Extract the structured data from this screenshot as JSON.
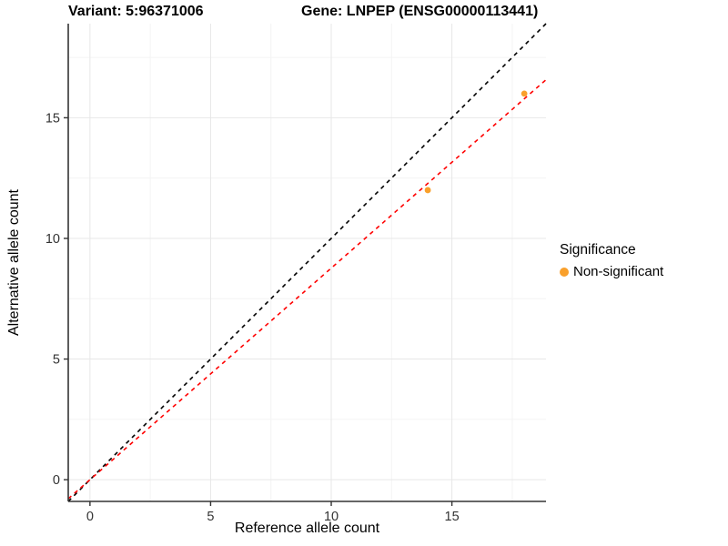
{
  "titles": {
    "variant": "Variant: 5:96371006",
    "gene": "Gene: LNPEP (ENSG00000113441)"
  },
  "chart_data": {
    "type": "scatter",
    "title_left": "Variant: 5:96371006",
    "title_right": "Gene: LNPEP (ENSG00000113441)",
    "xlabel": "Reference allele count",
    "ylabel": "Alternative allele count",
    "xlim": [
      -0.9,
      18.9
    ],
    "ylim": [
      -0.9,
      18.9
    ],
    "x_ticks": [
      0,
      5,
      10,
      15
    ],
    "y_ticks": [
      0,
      5,
      10,
      15
    ],
    "minor_ticks": [
      2.5,
      7.5,
      12.5,
      17.5
    ],
    "grid": true,
    "points": [
      {
        "x": 14,
        "y": 12,
        "series": "Non-significant"
      },
      {
        "x": 18,
        "y": 16,
        "series": "Non-significant"
      }
    ],
    "lines": [
      {
        "name": "identity-line",
        "slope": 1,
        "intercept": 0,
        "color": "#000000",
        "style": "dashed"
      },
      {
        "name": "fitted-line",
        "slope": 0.877,
        "intercept": 0,
        "color": "#FF0000",
        "style": "dashed"
      }
    ],
    "legend": {
      "title": "Significance",
      "position": "right",
      "items": [
        {
          "label": "Non-significant",
          "color": "#F9A02B"
        }
      ]
    },
    "colors": {
      "point": "#F9A02B",
      "grid_major": "#E7E7E7",
      "grid_minor": "#F4F4F4",
      "axis": "#333333",
      "tick_label": "#333333"
    }
  }
}
